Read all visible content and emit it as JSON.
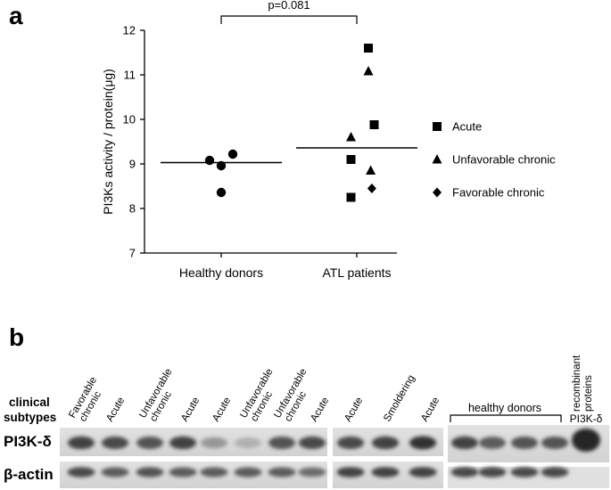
{
  "panel_a_label": "a",
  "panel_b_label": "b",
  "chart_data": {
    "type": "scatter",
    "title": "",
    "ylabel": "PI3Ks activity / protein(μg)",
    "xlabel": "",
    "ylim": [
      7,
      12
    ],
    "yticks": [
      "7",
      "8",
      "9",
      "10",
      "11",
      "12"
    ],
    "categories": [
      "Healthy donors",
      "ATL patients"
    ],
    "significance": "p=0.081",
    "legend_position": "right",
    "series": [
      {
        "name": "",
        "group": "Healthy donors",
        "marker": "circle",
        "points": [
          {
            "x": -0.1,
            "y": 9.08
          },
          {
            "x": 0.0,
            "y": 8.96
          },
          {
            "x": 0.1,
            "y": 9.22
          },
          {
            "x": 0.0,
            "y": 8.36
          }
        ]
      },
      {
        "name": "Acute",
        "group": "ATL patients",
        "marker": "square",
        "points": [
          {
            "x": 0.1,
            "y": 11.6
          },
          {
            "x": 0.15,
            "y": 9.88
          },
          {
            "x": -0.05,
            "y": 9.1
          },
          {
            "x": -0.05,
            "y": 8.25
          }
        ]
      },
      {
        "name": "Unfavorable chronic",
        "group": "ATL patients",
        "marker": "triangle",
        "points": [
          {
            "x": 0.1,
            "y": 11.08
          },
          {
            "x": -0.05,
            "y": 9.6
          },
          {
            "x": 0.12,
            "y": 8.85
          }
        ]
      },
      {
        "name": "Favorable chronic",
        "group": "ATL patients",
        "marker": "diamond",
        "points": [
          {
            "x": 0.13,
            "y": 8.45
          }
        ]
      }
    ],
    "means": [
      {
        "group": "Healthy donors",
        "y": 9.03
      },
      {
        "group": "ATL patients",
        "y": 9.36
      }
    ]
  },
  "blot": {
    "clinical_label": "clinical\nsubtypes",
    "row_labels": [
      "PI3K-δ",
      "β-actin"
    ],
    "lanes": [
      "Favorable chronic",
      "Acute",
      "Unfavorable chronic",
      "Acute",
      "Acute",
      "Unfavorable chronic",
      "Unfavorable chronic",
      "Acute",
      "Acute",
      "Smoldering",
      "Acute"
    ],
    "healthy_donors_label": "healthy donors",
    "recombinant_label": "recombinant proteins",
    "recombinant_sub": "PI3K-δ",
    "pi3k_intensity": [
      0.85,
      0.8,
      0.75,
      0.85,
      0.35,
      0.2,
      0.75,
      0.8,
      0.8,
      0.85,
      0.95,
      0.85,
      0.7,
      0.75,
      0.75,
      1.0
    ],
    "actin_intensity": [
      0.8,
      0.7,
      0.75,
      0.7,
      0.7,
      0.7,
      0.7,
      0.6,
      0.85,
      0.85,
      0.85,
      0.8,
      0.8,
      0.8,
      0.8
    ]
  }
}
